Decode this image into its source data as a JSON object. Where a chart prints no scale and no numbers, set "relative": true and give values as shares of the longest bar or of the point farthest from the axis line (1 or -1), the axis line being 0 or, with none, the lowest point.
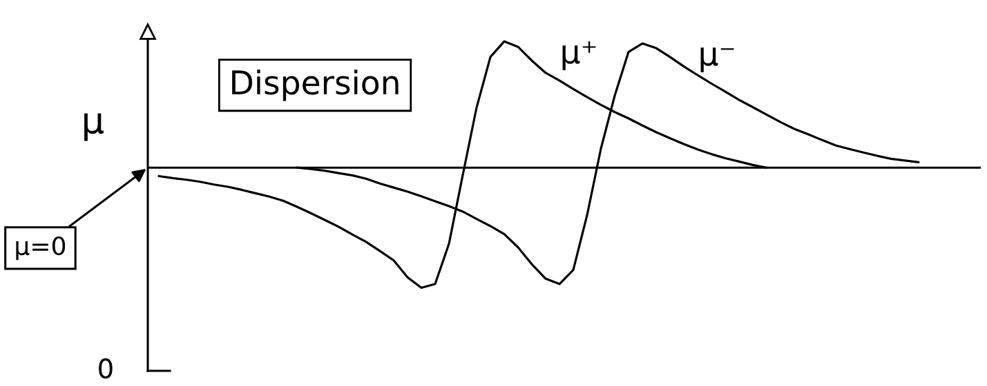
{
  "chart_data": {
    "type": "line",
    "title": "Dispersion",
    "ylabel": "μ",
    "relative": true,
    "categories": [
      null,
      null,
      null,
      null,
      null,
      null,
      null,
      null,
      null,
      null,
      null,
      null,
      null,
      null,
      null,
      null,
      null,
      null,
      null,
      null,
      null,
      null,
      null,
      null,
      null,
      null,
      null,
      null,
      null,
      null,
      null,
      null,
      null,
      null,
      null,
      null,
      null,
      null,
      null,
      null,
      null,
      null,
      null,
      null,
      null,
      null,
      null,
      null,
      null,
      null,
      null,
      null,
      null,
      null,
      null,
      null
    ],
    "series": [
      {
        "name": "μ⁺",
        "color": "#000000",
        "values": [
          -0.067,
          -0.083,
          -0.096,
          -0.112,
          -0.134,
          -0.152,
          -0.176,
          -0.203,
          -0.23,
          -0.262,
          -0.31,
          -0.361,
          -0.414,
          -0.468,
          -0.529,
          -0.588,
          -0.66,
          -0.735,
          -0.869,
          -0.952,
          -0.922,
          -0.604,
          -0.059,
          0.476,
          0.877,
          1.0,
          0.957,
          0.848,
          0.751,
          0.69,
          0.623,
          0.559,
          0.497,
          0.441,
          0.39,
          0.334,
          0.281,
          0.233,
          0.187,
          0.144,
          0.107,
          0.075,
          0.048,
          0.021,
          0,
          null,
          null,
          null,
          null,
          null,
          null,
          null,
          null,
          null,
          null,
          null
        ]
      },
      {
        "name": "μ⁻",
        "color": "#000000",
        "values": [
          null,
          null,
          null,
          null,
          null,
          null,
          null,
          null,
          null,
          null,
          0,
          -0.011,
          -0.024,
          -0.043,
          -0.061,
          -0.088,
          -0.126,
          -0.158,
          -0.19,
          -0.227,
          -0.267,
          -0.305,
          -0.348,
          -0.406,
          -0.463,
          -0.527,
          -0.631,
          -0.765,
          -0.88,
          -0.922,
          -0.81,
          -0.377,
          0.15,
          0.57,
          0.917,
          0.984,
          0.947,
          0.877,
          0.802,
          0.733,
          0.666,
          0.602,
          0.537,
          0.479,
          0.42,
          0.361,
          0.307,
          0.265,
          0.219,
          0.176,
          0.147,
          0.12,
          0.094,
          0.07,
          0.056,
          0.043
        ]
      }
    ],
    "ref_lines": [
      {
        "axis": "y",
        "value": 0,
        "label": "μ=0",
        "color": "#000000"
      }
    ],
    "annotations": [
      "0"
    ]
  }
}
